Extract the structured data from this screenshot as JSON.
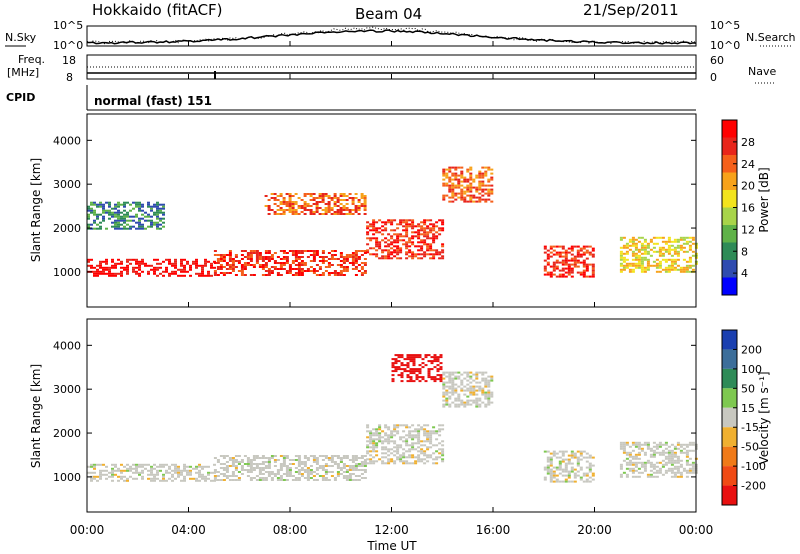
{
  "header": {
    "station": "Hokkaido (fitACF)",
    "beam": "Beam 04",
    "date": "21/Sep/2011"
  },
  "top_panels": {
    "noise": {
      "left_label": "N.Sky",
      "right_label": "N.Search",
      "left_ticks": [
        "10^5",
        "10^0"
      ],
      "right_ticks": [
        "10^5",
        "10^0"
      ]
    },
    "freq": {
      "left_label_1": "Freq.",
      "left_label_2": "[MHz]",
      "right_label": "Nave",
      "left_ticks": [
        "18",
        "8"
      ],
      "right_ticks": [
        "60",
        "0"
      ]
    },
    "cpid": {
      "label": "CPID",
      "mode_text": "normal (fast) 151"
    }
  },
  "chart_data": [
    {
      "type": "heatmap",
      "title": "",
      "ylabel": "Slant Range [km]",
      "xlabel": "",
      "ylim": [
        200,
        4600
      ],
      "yticks": [
        "1000",
        "2000",
        "3000",
        "4000"
      ],
      "x_ticks": [
        "00:00",
        "04:00",
        "08:00",
        "12:00",
        "16:00",
        "20:00",
        "00:00"
      ],
      "colorbar": {
        "label": "Power [dB]",
        "ticks": [
          "4",
          "8",
          "12",
          "16",
          "20",
          "24",
          "28"
        ],
        "colors": [
          "#0000ff",
          "#2f4bb0",
          "#2e8b57",
          "#5fb248",
          "#a8d44a",
          "#f3e41e",
          "#f7a21b",
          "#f5601b",
          "#e8251b",
          "#ff0000"
        ]
      },
      "bands": [
        {
          "start_ut": 0,
          "end_ut": 5,
          "r0": 900,
          "r1": 1300,
          "value_db": 28
        },
        {
          "start_ut": 5,
          "end_ut": 11,
          "r0": 950,
          "r1": 1500,
          "value_db": 26
        },
        {
          "start_ut": 11,
          "end_ut": 14,
          "r0": 1300,
          "r1": 2200,
          "value_db": 25
        },
        {
          "start_ut": 7,
          "end_ut": 11,
          "r0": 2300,
          "r1": 2800,
          "value_db": 22
        },
        {
          "start_ut": 14,
          "end_ut": 16,
          "r0": 2600,
          "r1": 3400,
          "value_db": 24
        },
        {
          "start_ut": 18,
          "end_ut": 20,
          "r0": 900,
          "r1": 1600,
          "value_db": 26
        },
        {
          "start_ut": 21,
          "end_ut": 24,
          "r0": 1000,
          "r1": 1800,
          "value_db": 18
        },
        {
          "start_ut": 0,
          "end_ut": 3,
          "r0": 2000,
          "r1": 2600,
          "value_db": 8
        }
      ]
    },
    {
      "type": "heatmap",
      "title": "",
      "ylabel": "Slant Range [km]",
      "xlabel": "Time UT",
      "ylim": [
        200,
        4600
      ],
      "yticks": [
        "1000",
        "2000",
        "3000",
        "4000"
      ],
      "x_ticks": [
        "00:00",
        "04:00",
        "08:00",
        "12:00",
        "16:00",
        "20:00",
        "00:00"
      ],
      "colorbar": {
        "label": "Velocity [m s⁻¹]",
        "ticks": [
          "200",
          "100",
          "50",
          "15",
          "-15",
          "-50",
          "-100",
          "-200"
        ],
        "colors": [
          "#1a3fb0",
          "#3c6e9a",
          "#2e8b57",
          "#7ec850",
          "#c8c8c0",
          "#f0b030",
          "#f07a18",
          "#f04a14",
          "#e81010"
        ]
      },
      "bands": [
        {
          "start_ut": 0,
          "end_ut": 5,
          "r0": 900,
          "r1": 1300,
          "value_ms": 0
        },
        {
          "start_ut": 5,
          "end_ut": 11,
          "r0": 950,
          "r1": 1500,
          "value_ms": 0
        },
        {
          "start_ut": 11,
          "end_ut": 14,
          "r0": 1300,
          "r1": 2200,
          "value_ms": -5
        },
        {
          "start_ut": 12,
          "end_ut": 14,
          "r0": 3200,
          "r1": 3800,
          "value_ms": -150
        },
        {
          "start_ut": 14,
          "end_ut": 16,
          "r0": 2600,
          "r1": 3400,
          "value_ms": 0
        },
        {
          "start_ut": 18,
          "end_ut": 20,
          "r0": 900,
          "r1": 1600,
          "value_ms": 0
        },
        {
          "start_ut": 21,
          "end_ut": 24,
          "r0": 1000,
          "r1": 1800,
          "value_ms": 0
        }
      ]
    }
  ]
}
